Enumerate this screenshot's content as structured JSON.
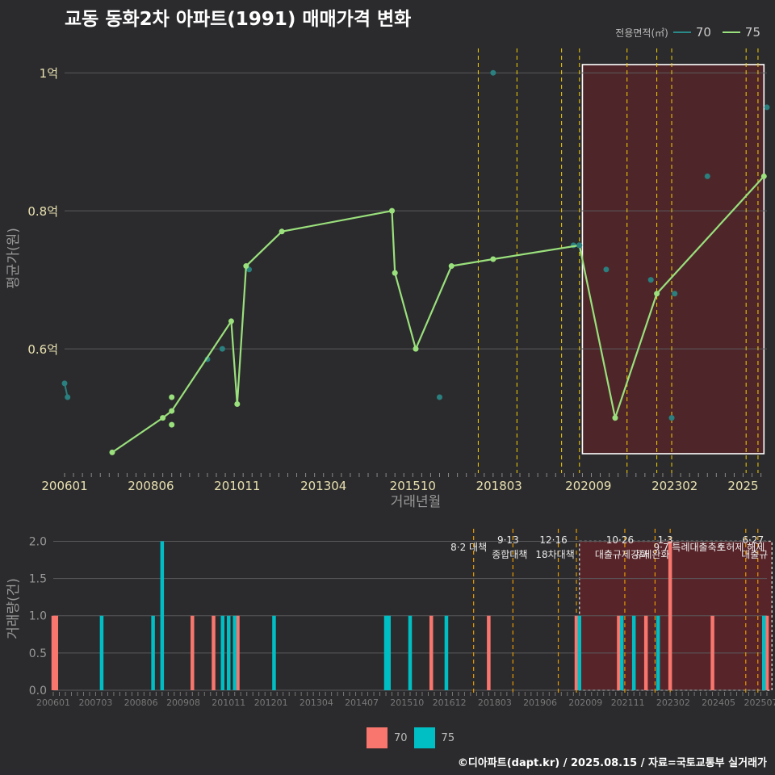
{
  "title": "교동 동화2차 아파트(1991) 매매가격 변화",
  "credit": "©디아파트(dapt.kr) / 2025.08.15 / 자료=국토교통부 실거래가",
  "colors": {
    "s70_bar": "#f8766d",
    "s75_bar": "#00bfc4",
    "s70_line": "#2a7f7f",
    "s75_line": "#9ae07c",
    "policy": "#f5d000",
    "highlight": "#6b2228"
  },
  "chart_data": [
    {
      "type": "line",
      "name": "price",
      "ylabel": "평균가(원)",
      "xlabel": "거래년월",
      "yticks": [
        {
          "label": "0.6억",
          "v": 0.6
        },
        {
          "label": "0.8억",
          "v": 0.8
        },
        {
          "label": "1억",
          "v": 1.0
        }
      ],
      "ylim": [
        0.42,
        1.04
      ],
      "xlim": [
        "2006-01",
        "2025-09"
      ],
      "xticks": [
        "200601",
        "200806",
        "201011",
        "201304",
        "201510",
        "201803",
        "202009",
        "202302",
        "2025"
      ],
      "legend_title": "전용면적(㎡)",
      "series": [
        {
          "name": "70",
          "points": [
            [
              "2006-01",
              0.55
            ],
            [
              "2006-02",
              0.53
            ],
            [
              "2010-01",
              0.585
            ],
            [
              "2010-06",
              0.6
            ],
            [
              "2011-03",
              0.715
            ],
            [
              "2016-07",
              0.53
            ],
            [
              "2020-04",
              0.75
            ],
            [
              "2021-03",
              0.715
            ],
            [
              "2022-06",
              0.7
            ],
            [
              "2023-01",
              0.5
            ],
            [
              "2023-02",
              0.68
            ],
            [
              "2024-01",
              0.85
            ],
            [
              "2025-09",
              0.95
            ]
          ],
          "dots_only": true
        },
        {
          "name": "75",
          "points": [
            [
              "2007-05",
              0.45
            ],
            [
              "2008-10",
              0.5
            ],
            [
              "2009-01",
              0.53
            ],
            [
              "2009-01",
              0.49
            ],
            [
              "2009-01",
              0.51
            ],
            [
              "2010-09",
              0.64
            ],
            [
              "2010-11",
              0.52
            ],
            [
              "2011-02",
              0.72
            ],
            [
              "2012-02",
              0.77
            ],
            [
              "2015-03",
              0.8
            ],
            [
              "2015-04",
              0.71
            ],
            [
              "2015-11",
              0.6
            ],
            [
              "2016-11",
              0.72
            ],
            [
              "2018-01",
              0.73
            ],
            [
              "2020-06",
              0.75
            ],
            [
              "2021-06",
              0.5
            ],
            [
              "2022-08",
              0.68
            ],
            [
              "2025-08",
              0.85
            ]
          ],
          "extra_dots": [
            [
              "2018-01",
              1.0
            ],
            [
              "2020-06",
              0.75
            ]
          ]
        }
      ],
      "policy_lines": [
        "2017-08",
        "2018-09",
        "2019-12",
        "2020-06",
        "2021-10",
        "2022-08",
        "2023-01",
        "2025-02",
        "2025-06"
      ],
      "highlight_range": [
        "2020-07",
        "2025-08"
      ]
    },
    {
      "type": "bar",
      "name": "volume",
      "ylabel": "거래량(건)",
      "yticks": [
        {
          "label": "0.0",
          "v": 0
        },
        {
          "label": "0.5",
          "v": 0.5
        },
        {
          "label": "1.0",
          "v": 1.0
        },
        {
          "label": "1.5",
          "v": 1.5
        },
        {
          "label": "2.0",
          "v": 2.0
        }
      ],
      "ylim": [
        0,
        2.2
      ],
      "xlim": [
        "2006-01",
        "2025-09"
      ],
      "xticks": [
        "200601",
        "200703",
        "200806",
        "200908",
        "201011",
        "201201",
        "201304",
        "201407",
        "201510",
        "201612",
        "201803",
        "201906",
        "202009",
        "202111",
        "202302",
        "202405",
        "202507"
      ],
      "series": [
        {
          "name": "70",
          "bars": [
            [
              "2006-01",
              1
            ],
            [
              "2006-02",
              1
            ],
            [
              "2009-11",
              1
            ],
            [
              "2010-06",
              1
            ],
            [
              "2011-02",
              1
            ],
            [
              "2016-06",
              1
            ],
            [
              "2018-01",
              1
            ],
            [
              "2020-06",
              1
            ],
            [
              "2021-08",
              1
            ],
            [
              "2022-05",
              1
            ],
            [
              "2023-01",
              2
            ],
            [
              "2024-03",
              1
            ],
            [
              "2025-09",
              1
            ]
          ]
        },
        {
          "name": "75",
          "bars": [
            [
              "2007-05",
              1
            ],
            [
              "2008-10",
              1
            ],
            [
              "2009-01",
              2
            ],
            [
              "2010-09",
              1
            ],
            [
              "2010-11",
              1
            ],
            [
              "2011-01",
              1
            ],
            [
              "2012-02",
              1
            ],
            [
              "2015-03",
              1
            ],
            [
              "2015-04",
              1
            ],
            [
              "2015-11",
              1
            ],
            [
              "2016-11",
              1
            ],
            [
              "2020-07",
              1
            ],
            [
              "2021-09",
              1
            ],
            [
              "2022-01",
              1
            ],
            [
              "2022-09",
              1
            ],
            [
              "2025-08",
              1
            ]
          ]
        }
      ],
      "policy_lines": [
        "2017-08",
        "2018-09",
        "2019-12",
        "2020-06",
        "2021-10",
        "2022-08",
        "2023-01",
        "2025-02",
        "2025-06"
      ],
      "annotations": [
        {
          "date": "8·2 대책",
          "at": "2017-08",
          "row": 2
        },
        {
          "date": "9·13",
          "label": "종합대책",
          "at": "2018-09",
          "row": 1
        },
        {
          "date": "12·16",
          "label": "18차대책",
          "at": "2019-12",
          "row": 1
        },
        {
          "date": "10·26",
          "label": "대출규제강화",
          "at": "2021-10",
          "row": 1
        },
        {
          "date": "",
          "label": "규제완화",
          "at": "2022-08",
          "row": 1
        },
        {
          "date": "1·3",
          "label": "",
          "at": "2023-01",
          "row": 1
        },
        {
          "date": "9·7",
          "label": "특례대출축소",
          "at": "2023-09",
          "row": 2
        },
        {
          "date": "",
          "label": "토허제 해제",
          "at": "2025-02",
          "row": 2
        },
        {
          "date": "6·27",
          "label": "대출규",
          "at": "2025-06",
          "row": 1
        }
      ],
      "highlight_range": [
        "2020-07",
        "2025-08"
      ]
    }
  ]
}
